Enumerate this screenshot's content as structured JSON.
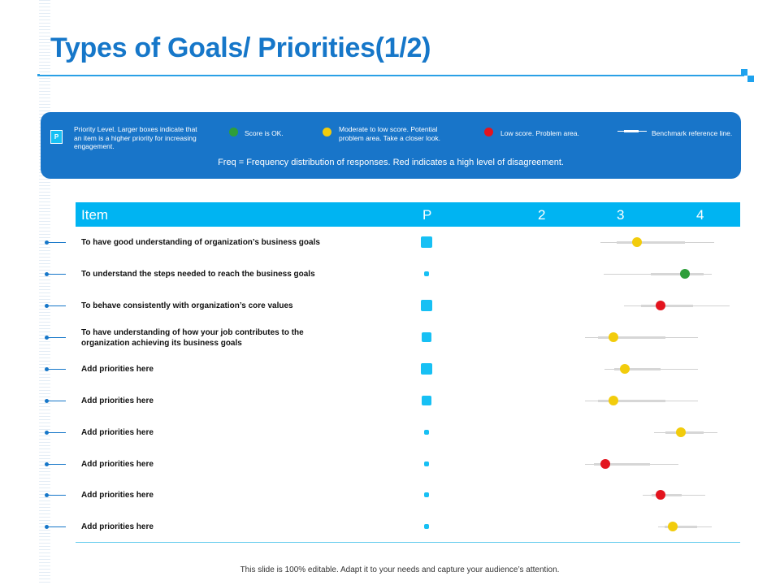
{
  "title": "Types of Goals/ Priorities(1/2)",
  "colors": {
    "ok": "#2e9e3a",
    "moderate": "#f2cc0c",
    "low": "#e3141e",
    "accent": "#1677c9",
    "header": "#00b4f2"
  },
  "legend": {
    "p_label": "P",
    "priority_text": "Priority Level. Larger boxes indicate that an item is a higher priority for increasing engagement.",
    "ok_text": "Score is OK.",
    "moderate_text": "Moderate to low score. Potential problem area. Take a closer look.",
    "low_text": "Low score. Problem area.",
    "benchmark_text": "Benchmark reference line.",
    "freq_text": "Freq = Frequency distribution of responses. Red indicates a high level of disagreement."
  },
  "table": {
    "headers": {
      "item": "Item",
      "p": "P",
      "c2": "2",
      "c3": "3",
      "c4": "4"
    },
    "rows": [
      {
        "label": "To have good understanding of organization’s business goals",
        "priority": "large",
        "score": 3.2,
        "status": "moderate"
      },
      {
        "label": "To understand the steps needed to reach the business goals",
        "priority": "small",
        "score": 3.8,
        "status": "ok"
      },
      {
        "label": "To behave consistently with organization’s core values",
        "priority": "large",
        "score": 3.5,
        "status": "low"
      },
      {
        "label": "To have understanding of how your job contributes to the organization achieving its business goals",
        "priority": "medium",
        "score": 2.9,
        "status": "moderate"
      },
      {
        "label": "Add priorities here",
        "priority": "large",
        "score": 3.05,
        "status": "moderate"
      },
      {
        "label": "Add priorities here",
        "priority": "medium",
        "score": 2.9,
        "status": "moderate"
      },
      {
        "label": "Add priorities here",
        "priority": "small",
        "score": 3.75,
        "status": "moderate"
      },
      {
        "label": "Add priorities here",
        "priority": "small",
        "score": 2.8,
        "status": "low"
      },
      {
        "label": "Add priorities here",
        "priority": "small",
        "score": 3.5,
        "status": "low"
      },
      {
        "label": "Add priorities here",
        "priority": "small",
        "score": 3.65,
        "status": "moderate"
      }
    ]
  },
  "footer": "This slide is 100% editable. Adapt it to your needs and capture your audience’s attention."
}
